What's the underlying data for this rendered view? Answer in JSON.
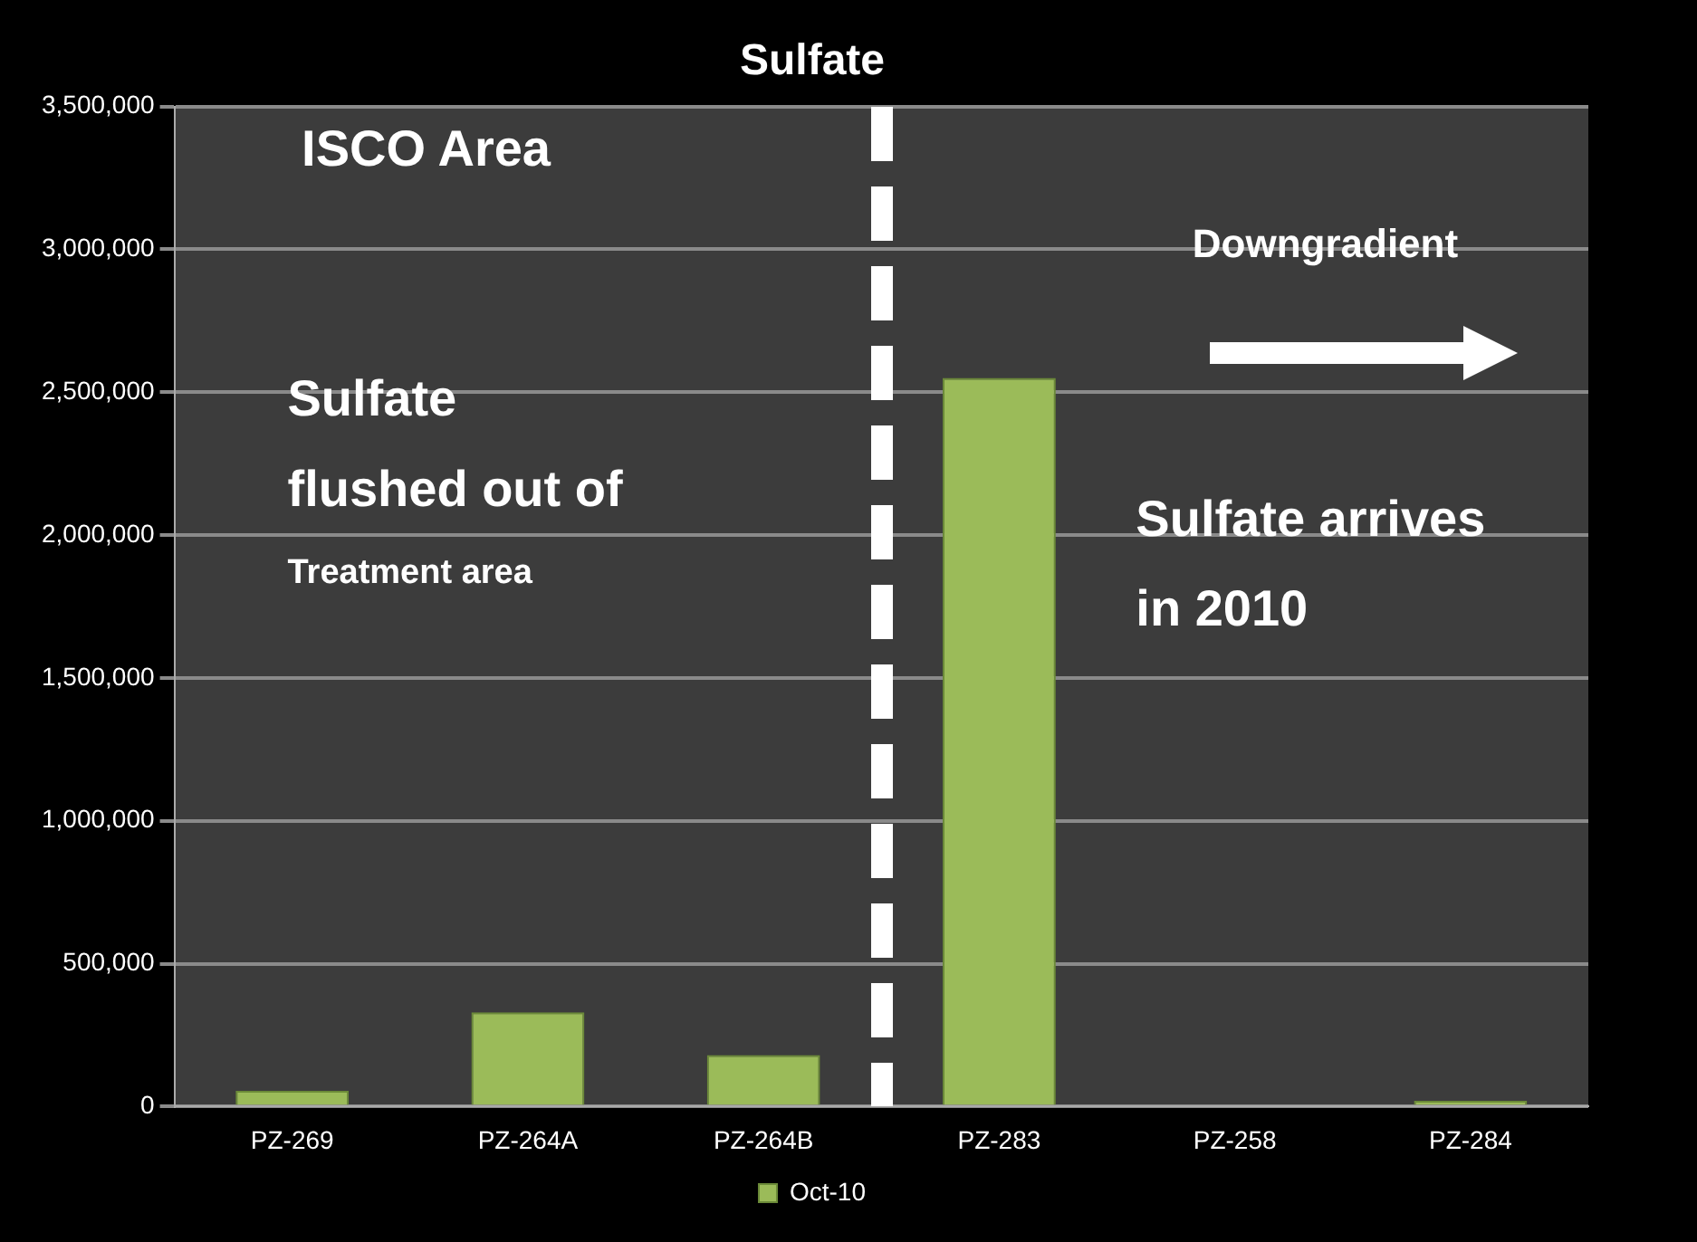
{
  "chart_data": {
    "type": "bar",
    "title": "Sulfate",
    "categories": [
      "PZ-269",
      "PZ-264A",
      "PZ-264B",
      "PZ-283",
      "PZ-258",
      "PZ-284"
    ],
    "series": [
      {
        "name": "Oct-10",
        "color": "#9bbb59",
        "values": [
          55000,
          330000,
          180000,
          2550000,
          0,
          20000
        ]
      }
    ],
    "ylim": [
      0,
      3500000
    ],
    "yticks": [
      {
        "value": 0,
        "label": "0"
      },
      {
        "value": 500000,
        "label": "500,000"
      },
      {
        "value": 1000000,
        "label": "1,000,000"
      },
      {
        "value": 1500000,
        "label": "1,500,000"
      },
      {
        "value": 2000000,
        "label": "2,000,000"
      },
      {
        "value": 2500000,
        "label": "2,500,000"
      },
      {
        "value": 3000000,
        "label": "3,000,000"
      },
      {
        "value": 3500000,
        "label": "3,500,000"
      }
    ],
    "grid": "y",
    "legend": "bottom",
    "annotations": [
      "ISCO Area",
      "Downgradient",
      "Sulfate",
      "flushed out of",
      "Treatment area",
      "Sulfate arrives",
      "in 2010"
    ]
  }
}
